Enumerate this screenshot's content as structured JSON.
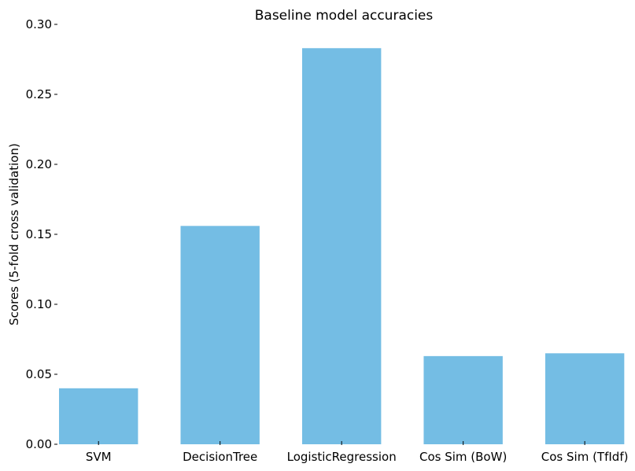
{
  "chart_data": {
    "type": "bar",
    "title": "Baseline model accuracies",
    "xlabel": "",
    "ylabel": "Scores (5-fold cross validation)",
    "categories": [
      "SVM",
      "DecisionTree",
      "LogisticRegression",
      "Cos Sim (BoW)",
      "Cos Sim (TfIdf)"
    ],
    "values": [
      0.04,
      0.156,
      0.283,
      0.063,
      0.065
    ],
    "ylim": [
      0,
      0.3
    ],
    "yticks": [
      "0.00",
      "0.05",
      "0.10",
      "0.15",
      "0.20",
      "0.25",
      "0.30"
    ],
    "bar_color": "#74bde4",
    "grid": false,
    "legend": "none"
  }
}
